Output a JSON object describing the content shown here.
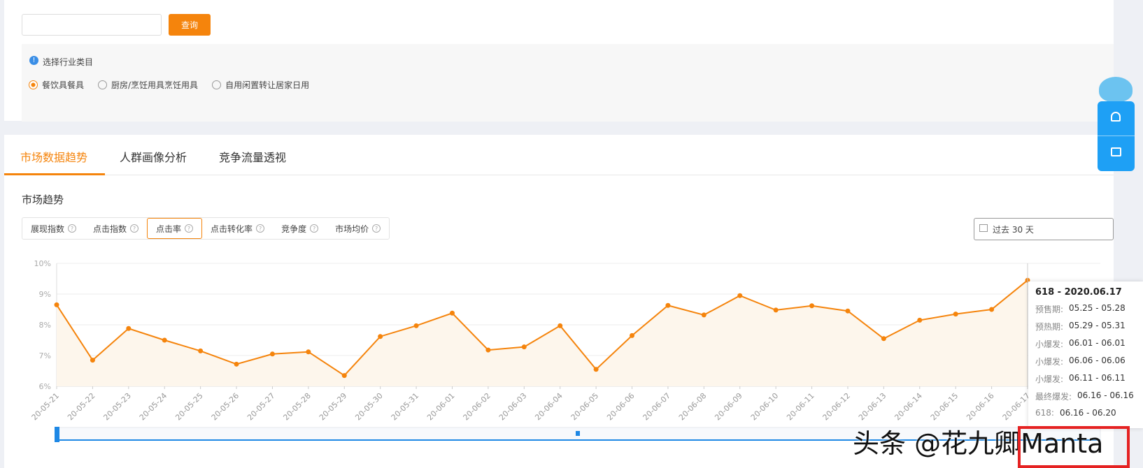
{
  "search": {
    "button": "查询"
  },
  "filter": {
    "hint": "选择行业类目",
    "options": [
      "餐饮具餐具",
      "厨房/烹饪用具烹饪用具",
      "自用闲置转让居家日用"
    ]
  },
  "tabs": [
    "市场数据趋势",
    "人群画像分析",
    "竞争流量透视"
  ],
  "section_title": "市场趋势",
  "metrics": [
    "展现指数",
    "点击指数",
    "点击率",
    "点击转化率",
    "竞争度",
    "市场均价"
  ],
  "date_range": "过去 30 天",
  "chart_data": {
    "type": "line",
    "categories": [
      "20-05-21",
      "20-05-22",
      "20-05-23",
      "20-05-24",
      "20-05-25",
      "20-05-26",
      "20-05-27",
      "20-05-28",
      "20-05-29",
      "20-05-30",
      "20-05-31",
      "20-06-01",
      "20-06-02",
      "20-06-03",
      "20-06-04",
      "20-06-05",
      "20-06-06",
      "20-06-07",
      "20-06-08",
      "20-06-09",
      "20-06-10",
      "20-06-11",
      "20-06-12",
      "20-06-13",
      "20-06-14",
      "20-06-15",
      "20-06-16",
      "20-06-17"
    ],
    "values": [
      8.65,
      6.85,
      7.88,
      7.5,
      7.15,
      6.72,
      7.05,
      7.12,
      6.35,
      7.62,
      7.97,
      8.38,
      7.18,
      7.28,
      7.97,
      6.55,
      7.65,
      8.63,
      8.32,
      8.95,
      8.48,
      8.62,
      8.45,
      7.55,
      8.15,
      8.35,
      8.5,
      9.45
    ],
    "color": "#f5840c",
    "ylim": [
      6,
      10
    ],
    "yticks": [
      {
        "value": 6,
        "label": "6%"
      },
      {
        "value": 7,
        "label": "7%"
      },
      {
        "value": 8,
        "label": "8%"
      },
      {
        "value": 9,
        "label": "9%"
      },
      {
        "value": 10,
        "label": "10%"
      }
    ],
    "grid": true
  },
  "tooltip": {
    "title": "618 - 2020.06.17",
    "rows": [
      {
        "label": "预售期:",
        "value": "05.25 - 05.28"
      },
      {
        "label": "预热期:",
        "value": "05.29 - 05.31"
      },
      {
        "label": "小爆发:",
        "value": "06.01 - 06.01"
      },
      {
        "label": "小爆发:",
        "value": "06.06 - 06.06"
      },
      {
        "label": "小爆发:",
        "value": "06.11 - 06.11"
      },
      {
        "label": "最终爆发:",
        "value": "06.16 - 06.16"
      },
      {
        "label": "618:",
        "value": "06.16 - 06.20"
      }
    ]
  },
  "watermark": "头条 @花九卿Manta"
}
